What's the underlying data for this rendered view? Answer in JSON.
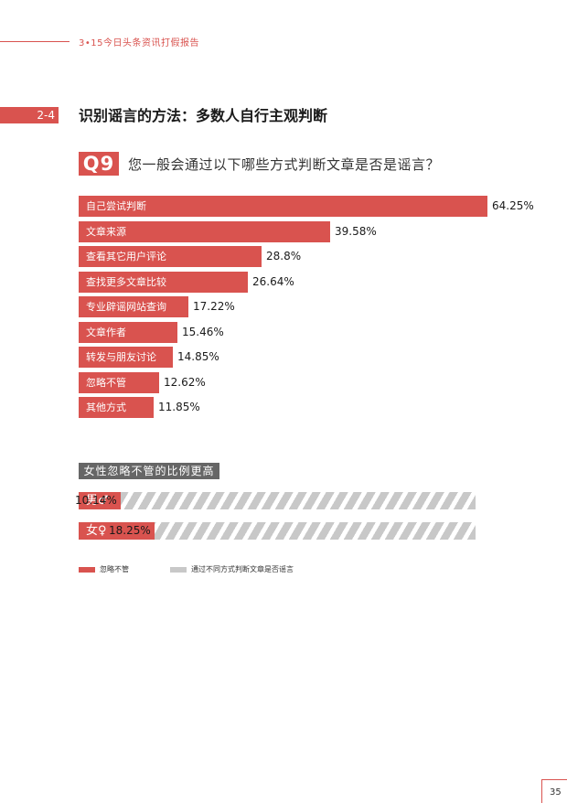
{
  "header": {
    "report_title": "3•15今日头条资讯打假报告"
  },
  "section": {
    "number": "2-4",
    "title": "识别谣言的方法：多数人自行主观判断"
  },
  "question": {
    "number": "Q9",
    "text": "您一般会通过以下哪些方式判断文章是否是谣言？"
  },
  "chart_data": [
    {
      "type": "bar",
      "orientation": "horizontal",
      "categories": [
        "自己尝试判断",
        "文章来源",
        "查看其它用户评论",
        "查找更多文章比较",
        "专业辟谣网站查询",
        "文章作者",
        "转发与朋友讨论",
        "忽略不管",
        "其他方式"
      ],
      "values": [
        64.25,
        39.58,
        28.8,
        26.64,
        17.22,
        15.46,
        14.85,
        12.62,
        11.85
      ],
      "value_labels": [
        "64.25%",
        "39.58%",
        "28.8%",
        "26.64%",
        "17.22%",
        "15.46%",
        "14.85%",
        "12.62%",
        "11.85%"
      ],
      "xlim": [
        0,
        64.25
      ],
      "colors": {
        "bar": "#d9534f"
      }
    },
    {
      "type": "bar",
      "orientation": "horizontal",
      "stacked": true,
      "title": "女性忽略不管的比例更高",
      "categories": [
        "男♂",
        "女♀"
      ],
      "series": [
        {
          "name": "忽略不管",
          "values": [
            10.14,
            18.25
          ]
        },
        {
          "name": "通过不同方式判断文章是否谣言",
          "values": [
            89.86,
            81.75
          ]
        }
      ],
      "value_labels": [
        "10.14%",
        "18.25%"
      ],
      "legend_position": "bottom",
      "colors": {
        "ignore": "#d9534f",
        "other": "#c8c8c8"
      }
    }
  ],
  "footer": {
    "page_number": "35"
  }
}
